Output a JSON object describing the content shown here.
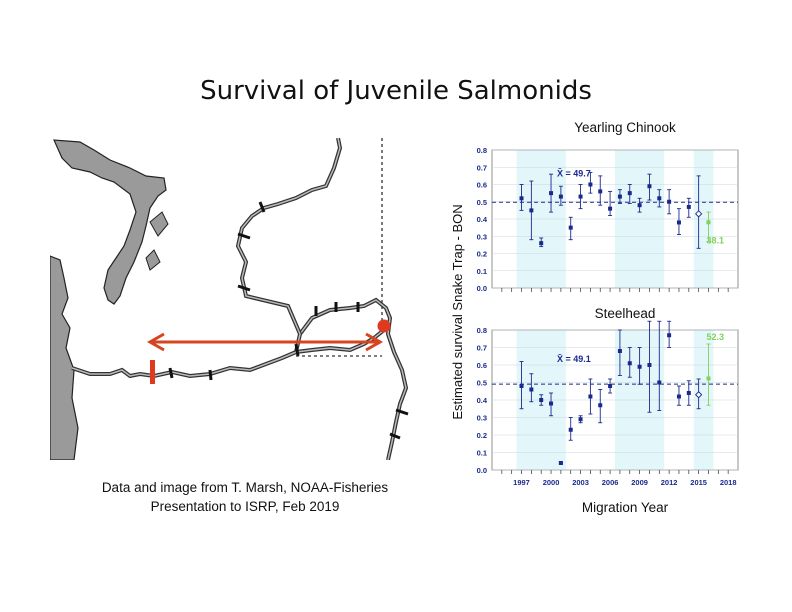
{
  "slide": {
    "title": "Survival of Juvenile Salmonids",
    "credit_line1": "Data and image from T. Marsh, NOAA-Fisheries",
    "credit_line2": "Presentation to ISRP, Feb 2019"
  },
  "colors": {
    "river": "#333333",
    "land_gray": "#9a9a9a",
    "arrow": "#d6451f",
    "marker": "#e03a1e",
    "series_dark": "#1a2a8c",
    "highlight_green": "#7ed35a",
    "band": "#e3f6f9",
    "grid": "#c8d8e0"
  },
  "chart_data": [
    {
      "type": "scatter",
      "title": "Yearling Chinook",
      "ylabel": "Estimated survival Snake Trap - BON",
      "xlabel": "",
      "xlim": [
        1994,
        2019
      ],
      "ylim": [
        0,
        0.8
      ],
      "yticks": [
        "0.0",
        "0.1",
        "0.2",
        "0.3",
        "0.4",
        "0.5",
        "0.6",
        "0.7",
        "0.8"
      ],
      "mean_label": "X̄ = 49.7",
      "mean": 0.497,
      "highlight_label": "38.1",
      "series": [
        {
          "points": [
            {
              "x": 1997,
              "y": 0.52,
              "lo": 0.45,
              "hi": 0.6
            },
            {
              "x": 1998,
              "y": 0.45,
              "lo": 0.28,
              "hi": 0.62
            },
            {
              "x": 1999,
              "y": 0.26,
              "lo": 0.24,
              "hi": 0.29
            },
            {
              "x": 2000,
              "y": 0.55,
              "lo": 0.44,
              "hi": 0.66
            },
            {
              "x": 2001,
              "y": 0.53,
              "lo": 0.48,
              "hi": 0.59
            },
            {
              "x": 2002,
              "y": 0.35,
              "lo": 0.28,
              "hi": 0.41
            },
            {
              "x": 2003,
              "y": 0.53,
              "lo": 0.46,
              "hi": 0.6
            },
            {
              "x": 2004,
              "y": 0.6,
              "lo": 0.55,
              "hi": 0.67
            },
            {
              "x": 2005,
              "y": 0.56,
              "lo": 0.48,
              "hi": 0.65
            },
            {
              "x": 2006,
              "y": 0.46,
              "lo": 0.42,
              "hi": 0.56
            },
            {
              "x": 2007,
              "y": 0.53,
              "lo": 0.49,
              "hi": 0.57
            },
            {
              "x": 2008,
              "y": 0.55,
              "lo": 0.49,
              "hi": 0.6
            },
            {
              "x": 2009,
              "y": 0.48,
              "lo": 0.44,
              "hi": 0.52
            },
            {
              "x": 2010,
              "y": 0.59,
              "lo": 0.51,
              "hi": 0.66
            },
            {
              "x": 2011,
              "y": 0.52,
              "lo": 0.47,
              "hi": 0.57
            },
            {
              "x": 2012,
              "y": 0.5,
              "lo": 0.43,
              "hi": 0.57
            },
            {
              "x": 2013,
              "y": 0.38,
              "lo": 0.31,
              "hi": 0.46
            },
            {
              "x": 2014,
              "y": 0.47,
              "lo": 0.41,
              "hi": 0.52
            },
            {
              "x": 2015,
              "y": 0.43,
              "lo": 0.23,
              "hi": 0.65,
              "hollow": true
            },
            {
              "x": 2016,
              "y": 0.381,
              "lo": 0.27,
              "hi": 0.44,
              "highlight": true
            }
          ]
        }
      ]
    },
    {
      "type": "scatter",
      "title": "Steelhead",
      "ylabel": "Estimated survival Snake Trap - BON",
      "xlabel": "Migration Year",
      "xlim": [
        1994,
        2019
      ],
      "ylim": [
        0,
        0.8
      ],
      "yticks": [
        "0.0",
        "0.1",
        "0.2",
        "0.3",
        "0.4",
        "0.5",
        "0.6",
        "0.7",
        "0.8"
      ],
      "xticks": [
        "1997",
        "2000",
        "2003",
        "2006",
        "2009",
        "2012",
        "2015",
        "2018"
      ],
      "mean_label": "X̄ = 49.1",
      "mean": 0.491,
      "highlight_label": "52.3",
      "series": [
        {
          "points": [
            {
              "x": 1997,
              "y": 0.48,
              "lo": 0.35,
              "hi": 0.62
            },
            {
              "x": 1998,
              "y": 0.46,
              "lo": 0.39,
              "hi": 0.55
            },
            {
              "x": 1999,
              "y": 0.4,
              "lo": 0.37,
              "hi": 0.43
            },
            {
              "x": 2000,
              "y": 0.38,
              "lo": 0.31,
              "hi": 0.44
            },
            {
              "x": 2001,
              "y": 0.04,
              "lo": 0.035,
              "hi": 0.045
            },
            {
              "x": 2002,
              "y": 0.23,
              "lo": 0.17,
              "hi": 0.3
            },
            {
              "x": 2003,
              "y": 0.29,
              "lo": 0.27,
              "hi": 0.31
            },
            {
              "x": 2004,
              "y": 0.42,
              "lo": 0.32,
              "hi": 0.52
            },
            {
              "x": 2005,
              "y": 0.37,
              "lo": 0.27,
              "hi": 0.46
            },
            {
              "x": 2006,
              "y": 0.48,
              "lo": 0.44,
              "hi": 0.52
            },
            {
              "x": 2007,
              "y": 0.68,
              "lo": 0.54,
              "hi": 0.8
            },
            {
              "x": 2008,
              "y": 0.61,
              "lo": 0.53,
              "hi": 0.7
            },
            {
              "x": 2009,
              "y": 0.59,
              "lo": 0.49,
              "hi": 0.7
            },
            {
              "x": 2010,
              "y": 0.6,
              "lo": 0.33,
              "hi": 0.86
            },
            {
              "x": 2011,
              "y": 0.5,
              "lo": 0.34,
              "hi": 0.86
            },
            {
              "x": 2012,
              "y": 0.77,
              "lo": 0.7,
              "hi": 0.86
            },
            {
              "x": 2013,
              "y": 0.42,
              "lo": 0.37,
              "hi": 0.48
            },
            {
              "x": 2014,
              "y": 0.44,
              "lo": 0.37,
              "hi": 0.51
            },
            {
              "x": 2015,
              "y": 0.43,
              "lo": 0.35,
              "hi": 0.52,
              "hollow": true
            },
            {
              "x": 2016,
              "y": 0.523,
              "lo": 0.37,
              "hi": 0.72,
              "highlight": true
            }
          ]
        }
      ]
    }
  ]
}
